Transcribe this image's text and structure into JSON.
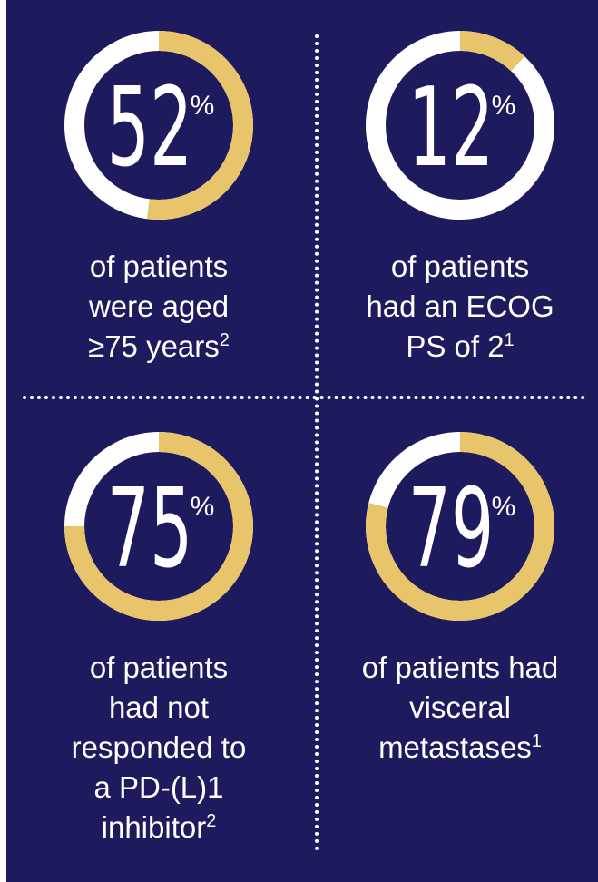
{
  "chart_data": [
    {
      "type": "donut",
      "value": 52,
      "value_label": "52",
      "unit": "%",
      "caption": "of patients were aged ≥75 years",
      "caption_lines": [
        "of patients",
        "were aged",
        "≥75 years"
      ],
      "footnote": "2"
    },
    {
      "type": "donut",
      "value": 12,
      "value_label": "12",
      "unit": "%",
      "caption": "of patients had an ECOG PS of 2",
      "caption_lines": [
        "of patients",
        "had an ECOG",
        "PS of 2"
      ],
      "footnote": "1"
    },
    {
      "type": "donut",
      "value": 75,
      "value_label": "75",
      "unit": "%",
      "caption": "of patients had not responded to a PD-(L)1 inhibitor",
      "caption_lines": [
        "of patients",
        "had not",
        "responded to",
        "a PD-(L)1",
        "inhibitor"
      ],
      "footnote": "2"
    },
    {
      "type": "donut",
      "value": 79,
      "value_label": "79",
      "unit": "%",
      "caption": "of patients had visceral metastases",
      "caption_lines": [
        "of patients had",
        "visceral",
        "metastases"
      ],
      "footnote": "1"
    }
  ],
  "colors": {
    "background": "#1e1a5e",
    "ring_track": "#ffffff",
    "ring_fill": "#e8c56b",
    "text": "#ffffff"
  }
}
